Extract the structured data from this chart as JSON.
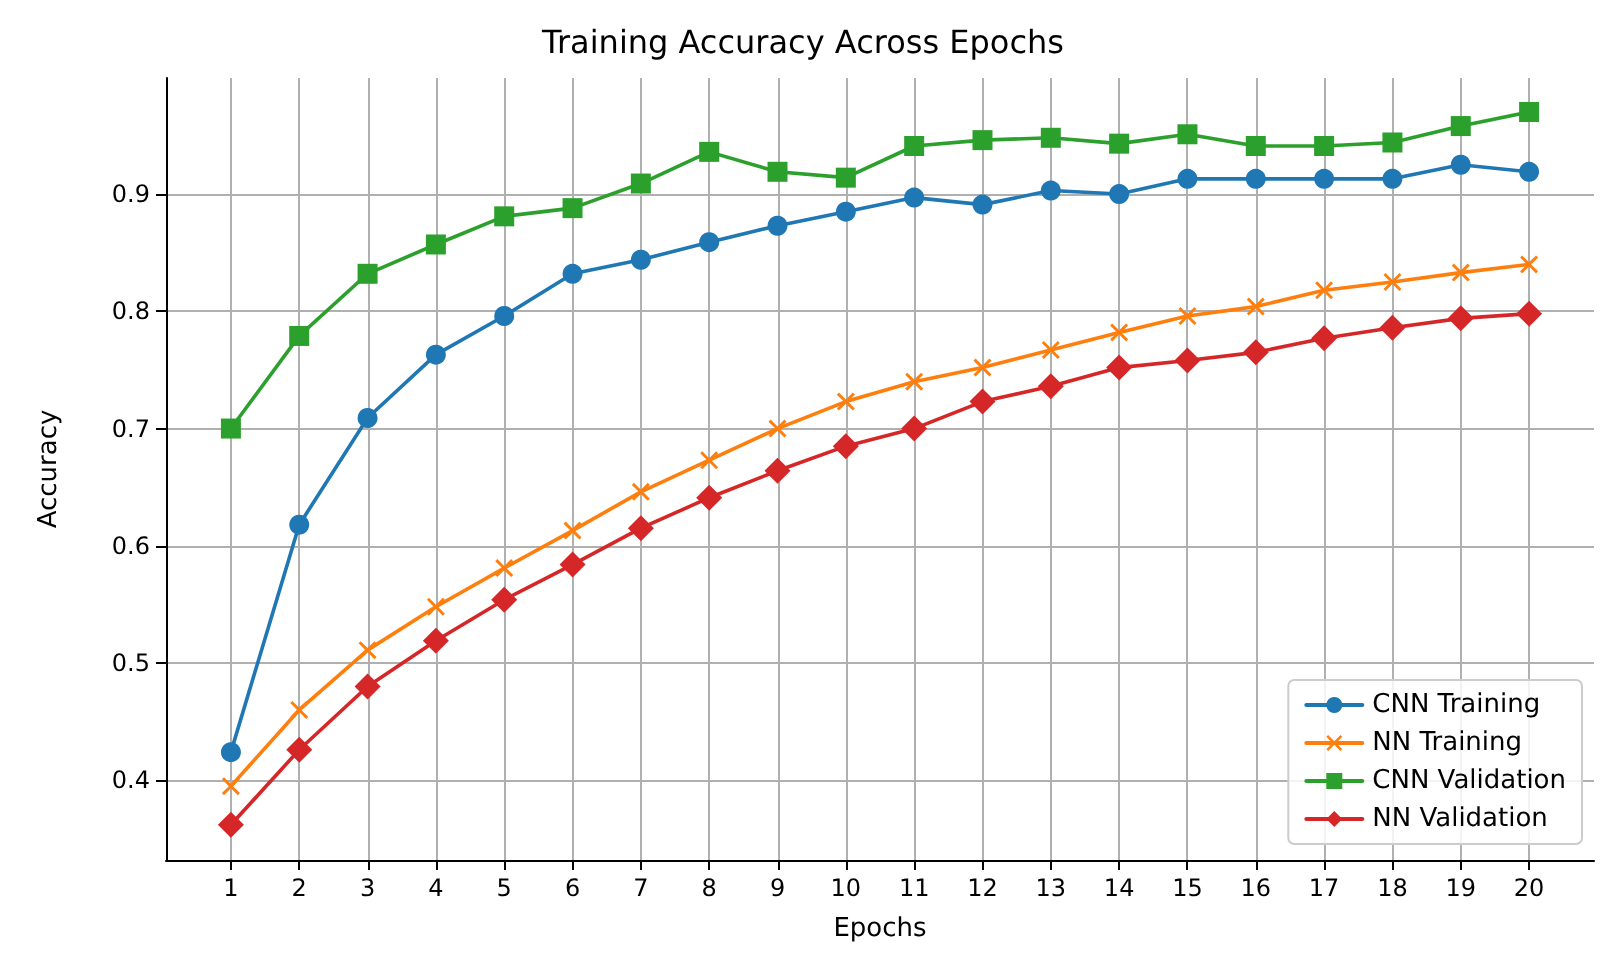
{
  "chart_data": {
    "type": "line",
    "title": "Training Accuracy Across Epochs",
    "xlabel": "Epochs",
    "ylabel": "Accuracy",
    "x": [
      1,
      2,
      3,
      4,
      5,
      6,
      7,
      8,
      9,
      10,
      11,
      12,
      13,
      14,
      15,
      16,
      17,
      18,
      19,
      20
    ],
    "xlim": [
      0.05,
      20.95
    ],
    "xticks": [
      1,
      2,
      3,
      4,
      5,
      6,
      7,
      8,
      9,
      10,
      11,
      12,
      13,
      14,
      15,
      16,
      17,
      18,
      19,
      20
    ],
    "ylim": [
      0.332,
      0.999
    ],
    "yticks": [
      0.4,
      0.5,
      0.6,
      0.7,
      0.8,
      0.9
    ],
    "grid": true,
    "legend": "bottom right",
    "line_style": "solid",
    "series": [
      {
        "name": "CNN Training",
        "color": "#1f77b4",
        "marker": "circle",
        "values": [
          0.424,
          0.618,
          0.709,
          0.763,
          0.796,
          0.832,
          0.844,
          0.859,
          0.873,
          0.885,
          0.897,
          0.891,
          0.903,
          0.9,
          0.913,
          0.913,
          0.913,
          0.913,
          0.925,
          0.919
        ]
      },
      {
        "name": "NN Training",
        "color": "#ff7f0e",
        "marker": "cross",
        "values": [
          0.395,
          0.46,
          0.511,
          0.548,
          0.581,
          0.613,
          0.646,
          0.673,
          0.7,
          0.723,
          0.74,
          0.752,
          0.767,
          0.782,
          0.796,
          0.804,
          0.818,
          0.825,
          0.833,
          0.84
        ]
      },
      {
        "name": "CNN Validation",
        "color": "#2ca02c",
        "marker": "square",
        "values": [
          0.7,
          0.779,
          0.832,
          0.857,
          0.881,
          0.888,
          0.909,
          0.936,
          0.919,
          0.914,
          0.941,
          0.946,
          0.948,
          0.943,
          0.951,
          0.941,
          0.941,
          0.944,
          0.958,
          0.97
        ]
      },
      {
        "name": "NN Validation",
        "color": "#d62728",
        "marker": "diamond",
        "values": [
          0.362,
          0.426,
          0.48,
          0.519,
          0.554,
          0.584,
          0.615,
          0.641,
          0.664,
          0.685,
          0.7,
          0.723,
          0.736,
          0.752,
          0.758,
          0.765,
          0.777,
          0.786,
          0.794,
          0.798
        ]
      }
    ]
  }
}
